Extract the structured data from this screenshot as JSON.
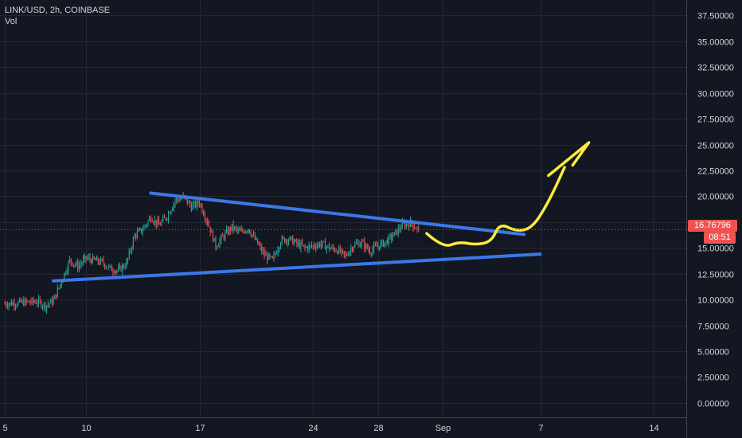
{
  "header": {
    "symbol_line": "LINK/USD, 2h, COINBASE",
    "indicator": "Vol"
  },
  "last_price": {
    "value": 16.76796,
    "label": "16.76796",
    "countdown": "08:51"
  },
  "colors": {
    "background": "#131722",
    "grid": "#242836",
    "candle_up": "#26a69a",
    "candle_down": "#ef5350",
    "trendline": "#3b78e7",
    "drawing": "#ffeb3b",
    "last_price": "#ef5350",
    "axis_text": "#d1d4dc"
  },
  "chart_data": {
    "type": "candlestick",
    "x_axis": {
      "type": "date",
      "range": [
        "2020-08-05",
        "2020-09-16"
      ],
      "tick_labels": [
        {
          "date": "2020-08-05",
          "label": "5"
        },
        {
          "date": "2020-08-10",
          "label": "10"
        },
        {
          "date": "2020-08-17",
          "label": "17"
        },
        {
          "date": "2020-08-24",
          "label": "24"
        },
        {
          "date": "2020-08-28",
          "label": "28"
        },
        {
          "date": "2020-09-01",
          "label": "Sep"
        },
        {
          "date": "2020-09-07",
          "label": "7"
        },
        {
          "date": "2020-09-14",
          "label": "14"
        }
      ]
    },
    "y_axis": {
      "range": [
        -1.4,
        39.0
      ],
      "tick_values": [
        0,
        2.5,
        5,
        7.5,
        10,
        12.5,
        15,
        17.5,
        20,
        22.5,
        25,
        27.5,
        30,
        32.5,
        35,
        37.5
      ],
      "tick_labels": [
        "0.00000",
        "2.50000",
        "5.00000",
        "7.50000",
        "10.00000",
        "12.50000",
        "15.00000",
        "17.50000",
        "20.00000",
        "22.50000",
        "25.00000",
        "27.50000",
        "30.00000",
        "32.50000",
        "35.00000",
        "37.50000"
      ]
    },
    "grid": true,
    "price_path": [
      [
        "2020-08-05",
        9.6
      ],
      [
        "2020-08-06",
        9.7
      ],
      [
        "2020-08-07",
        9.8
      ],
      [
        "2020-08-07T12:00",
        9.4
      ],
      [
        "2020-08-08",
        9.9
      ],
      [
        "2020-08-08T12:00",
        11.8
      ],
      [
        "2020-08-09",
        13.8
      ],
      [
        "2020-08-09T12:00",
        13.2
      ],
      [
        "2020-08-10",
        14.0
      ],
      [
        "2020-08-11",
        13.6
      ],
      [
        "2020-08-11T12:00",
        13.0
      ],
      [
        "2020-08-12",
        12.8
      ],
      [
        "2020-08-12T12:00",
        13.5
      ],
      [
        "2020-08-13",
        16.2
      ],
      [
        "2020-08-13T12:00",
        16.8
      ],
      [
        "2020-08-14",
        18.0
      ],
      [
        "2020-08-14T12:00",
        17.2
      ],
      [
        "2020-08-15",
        18.1
      ],
      [
        "2020-08-15T12:00",
        19.6
      ],
      [
        "2020-08-16",
        19.9
      ],
      [
        "2020-08-16T12:00",
        19.0
      ],
      [
        "2020-08-17",
        19.4
      ],
      [
        "2020-08-17T12:00",
        17.5
      ],
      [
        "2020-08-18",
        15.2
      ],
      [
        "2020-08-18T12:00",
        16.2
      ],
      [
        "2020-08-19",
        17.0
      ],
      [
        "2020-08-19T12:00",
        16.5
      ],
      [
        "2020-08-20",
        16.9
      ],
      [
        "2020-08-20T12:00",
        15.6
      ],
      [
        "2020-08-21",
        14.3
      ],
      [
        "2020-08-21T12:00",
        13.8
      ],
      [
        "2020-08-22",
        15.7
      ],
      [
        "2020-08-22T12:00",
        15.9
      ],
      [
        "2020-08-23",
        15.4
      ],
      [
        "2020-08-23T12:00",
        15.0
      ],
      [
        "2020-08-24",
        15.2
      ],
      [
        "2020-08-24T12:00",
        15.4
      ],
      [
        "2020-08-25",
        15.0
      ],
      [
        "2020-08-25T12:00",
        14.8
      ],
      [
        "2020-08-26",
        14.2
      ],
      [
        "2020-08-26T12:00",
        15.3
      ],
      [
        "2020-08-27",
        15.5
      ],
      [
        "2020-08-27T12:00",
        14.7
      ],
      [
        "2020-08-28",
        15.2
      ],
      [
        "2020-08-28T12:00",
        15.6
      ],
      [
        "2020-08-29",
        16.3
      ],
      [
        "2020-08-29T12:00",
        17.2
      ],
      [
        "2020-08-30",
        17.4
      ],
      [
        "2020-08-30T12:00",
        16.77
      ]
    ],
    "drawings": {
      "upper_trendline": [
        [
          "2020-08-14",
          20.3
        ],
        [
          "2020-09-06",
          16.3
        ]
      ],
      "lower_trendline": [
        [
          "2020-08-08",
          11.8
        ],
        [
          "2020-09-07",
          14.4
        ]
      ],
      "projection_wave": [
        [
          "2020-08-31",
          16.4
        ],
        [
          "2020-09-01",
          15.0
        ],
        [
          "2020-09-02",
          15.6
        ],
        [
          "2020-09-03",
          15.3
        ],
        [
          "2020-09-04",
          15.6
        ],
        [
          "2020-09-04T12:00",
          17.4
        ],
        [
          "2020-09-05T12:00",
          16.6
        ],
        [
          "2020-09-06T12:00",
          16.9
        ],
        [
          "2020-09-07T12:00",
          19.4
        ],
        [
          "2020-09-08T12:00",
          22.8
        ]
      ],
      "arrow_head": [
        [
          "2020-09-07T12:00",
          22.0
        ],
        [
          "2020-09-10",
          25.2
        ],
        [
          "2020-09-09",
          23.0
        ]
      ]
    }
  }
}
